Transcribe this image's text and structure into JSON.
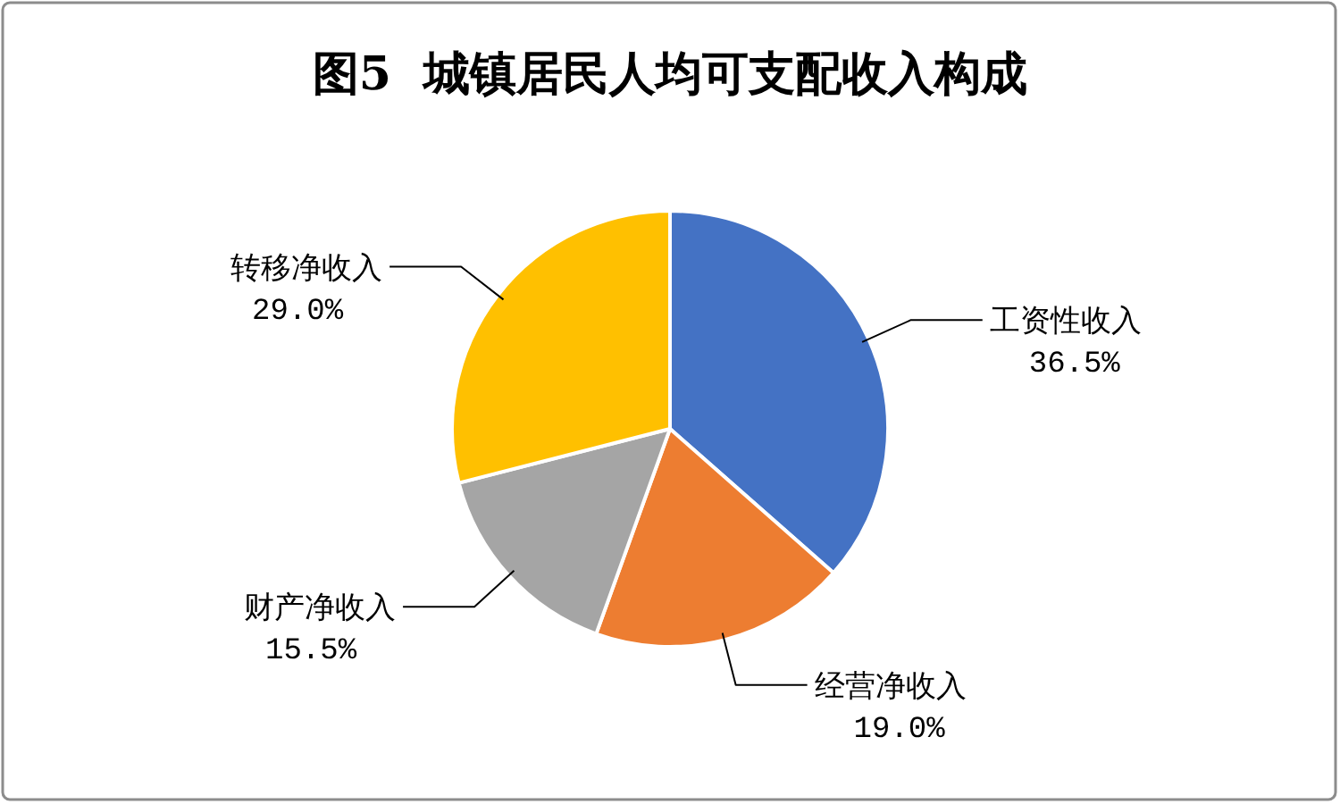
{
  "chart_data": {
    "type": "pie",
    "title": "图5  城镇居民人均可支配收入构成",
    "categories": [
      "工资性收入",
      "经营净收入",
      "财产净收入",
      "转移净收入"
    ],
    "values": [
      36.5,
      19.0,
      15.5,
      29.0
    ],
    "colors": [
      "#4472c4",
      "#ed7d31",
      "#a5a5a5",
      "#ffc000"
    ],
    "value_labels": [
      "36.5%",
      "19.0%",
      "15.5%",
      "29.0%"
    ]
  }
}
